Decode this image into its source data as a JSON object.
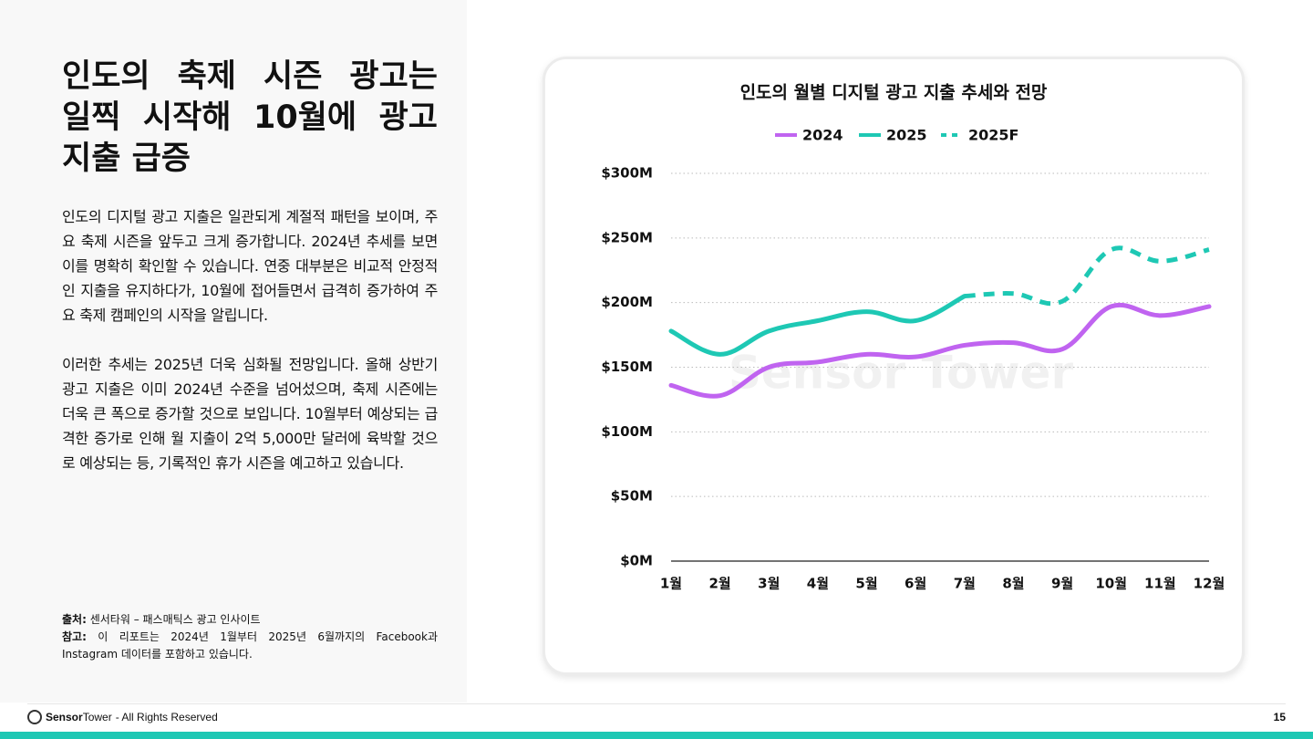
{
  "header": {
    "title_lines": [
      "인도의 축제 시즌 광고는",
      "일찍 시작해 10월에 광고",
      "지출 급증"
    ]
  },
  "body": {
    "paragraphs": [
      "인도의 디지털 광고 지출은 일관되게 계절적 패턴을 보이며, 주요 축제 시즌을 앞두고 크게 증가합니다. 2024년 추세를 보면 이를 명확히 확인할 수 있습니다. 연중 대부분은 비교적 안정적인 지출을 유지하다가, 10월에 접어들면서 급격히 증가하여 주요 축제 캠페인의 시작을 알립니다.",
      "이러한 추세는 2025년 더욱 심화될 전망입니다. 올해 상반기 광고 지출은 이미 2024년 수준을 넘어섰으며, 축제 시즌에는 더욱 큰 폭으로 증가할 것으로 보입니다. 10월부터 예상되는 급격한 증가로 인해 월 지출이 2억 5,000만 달러에 육박할 것으로 예상되는 등, 기록적인 휴가 시즌을 예고하고 있습니다."
    ]
  },
  "notes": {
    "source_label": "출처:",
    "source": "센서타워 – 패스매틱스 광고 인사이트",
    "note_label": "참고:",
    "note": "이 리포트는 2024년 1월부터 2025년 6월까지의 Facebook과 Instagram 데이터를 포함하고 있습니다."
  },
  "chart_data": {
    "type": "line",
    "title": "인도의 월별 디지털 광고 지출 추세와 전망",
    "watermark": "Sensor Tower",
    "categories": [
      "1월",
      "2월",
      "3월",
      "4월",
      "5월",
      "6월",
      "7월",
      "8월",
      "9월",
      "10월",
      "11월",
      "12월"
    ],
    "series": [
      {
        "name": "2024",
        "color": "#c064f0",
        "dashed": false,
        "values": [
          136,
          128,
          150,
          154,
          160,
          158,
          167,
          169,
          164,
          197,
          190,
          197
        ]
      },
      {
        "name": "2025",
        "color": "#1ec8b4",
        "dashed": false,
        "values": [
          178,
          160,
          178,
          186,
          193,
          186,
          205,
          null,
          null,
          null,
          null,
          null
        ]
      },
      {
        "name": "2025F",
        "color": "#1ec8b4",
        "dashed": true,
        "values": [
          null,
          null,
          null,
          null,
          null,
          null,
          205,
          207,
          201,
          241,
          232,
          241
        ]
      }
    ],
    "ylim": [
      0,
      300
    ],
    "yticks": [
      {
        "value": 0,
        "label": "$0M"
      },
      {
        "value": 50,
        "label": "$50M"
      },
      {
        "value": 100,
        "label": "$100M"
      },
      {
        "value": 150,
        "label": "$150M"
      },
      {
        "value": 200,
        "label": "$200M"
      },
      {
        "value": 250,
        "label": "$250M"
      },
      {
        "value": 300,
        "label": "$300M"
      }
    ],
    "grid": true
  },
  "footer": {
    "brand_bold": "Sensor",
    "brand_light": "Tower",
    "rights": "- All Rights Reserved",
    "page": "15"
  }
}
